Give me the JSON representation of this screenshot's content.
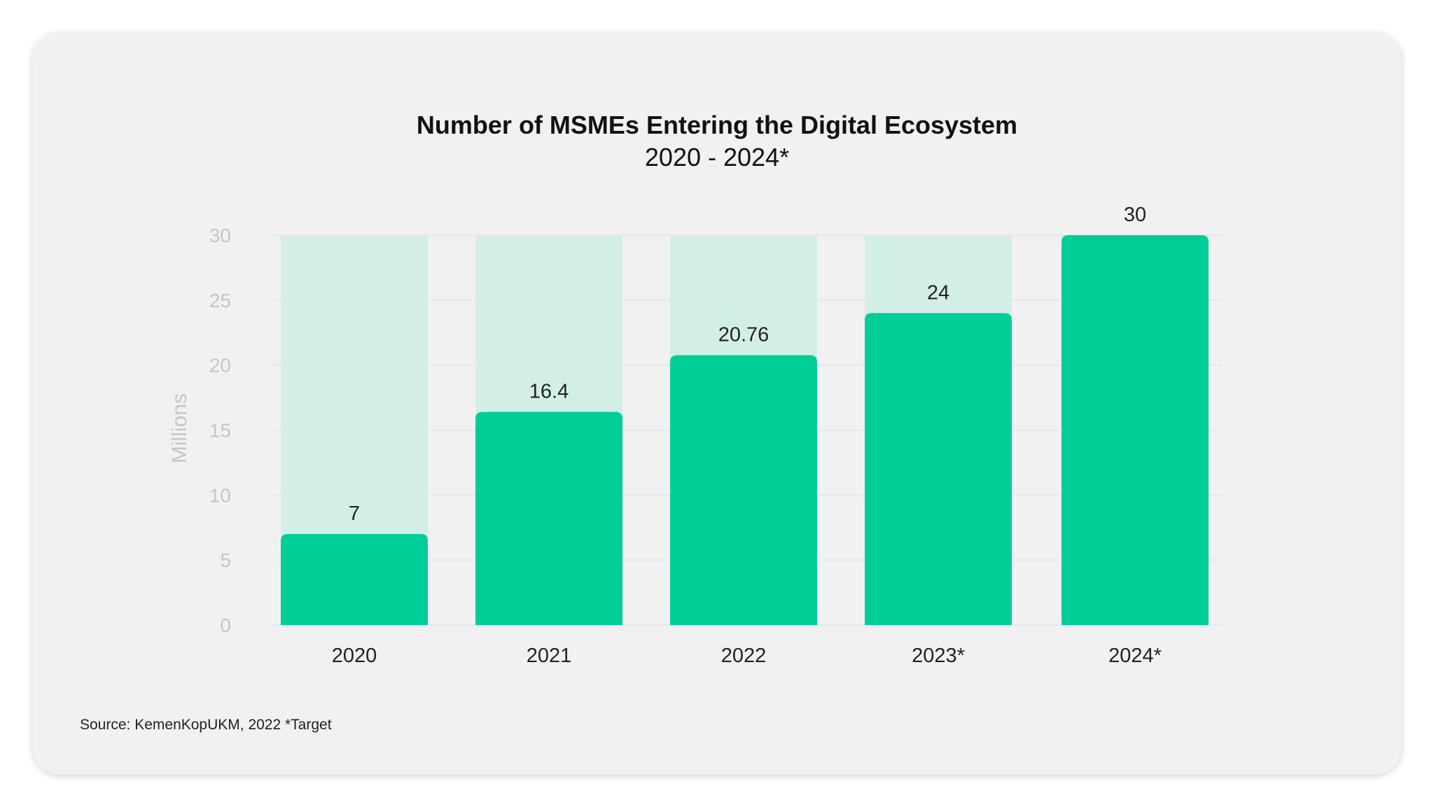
{
  "chart_data": {
    "type": "bar",
    "title": "Number of MSMEs Entering the Digital Ecosystem",
    "subtitle": "2020 - 2024*",
    "ylabel": "Millions",
    "xlabel": "",
    "categories": [
      "2020",
      "2021",
      "2022",
      "2023*",
      "2024*"
    ],
    "values": [
      7,
      16.4,
      20.76,
      24,
      30
    ],
    "value_labels": [
      "7",
      "16.4",
      "20.76",
      "24",
      "30"
    ],
    "ylim": [
      0,
      30
    ],
    "yticks": [
      0,
      5,
      10,
      15,
      20,
      25,
      30
    ],
    "grid": true,
    "colors": {
      "bar": "#00ce98",
      "background_bar": "#d3eee7",
      "grid": "#e6e6f2"
    }
  },
  "source": "Source: KemenKopUKM, 2022 *Target"
}
